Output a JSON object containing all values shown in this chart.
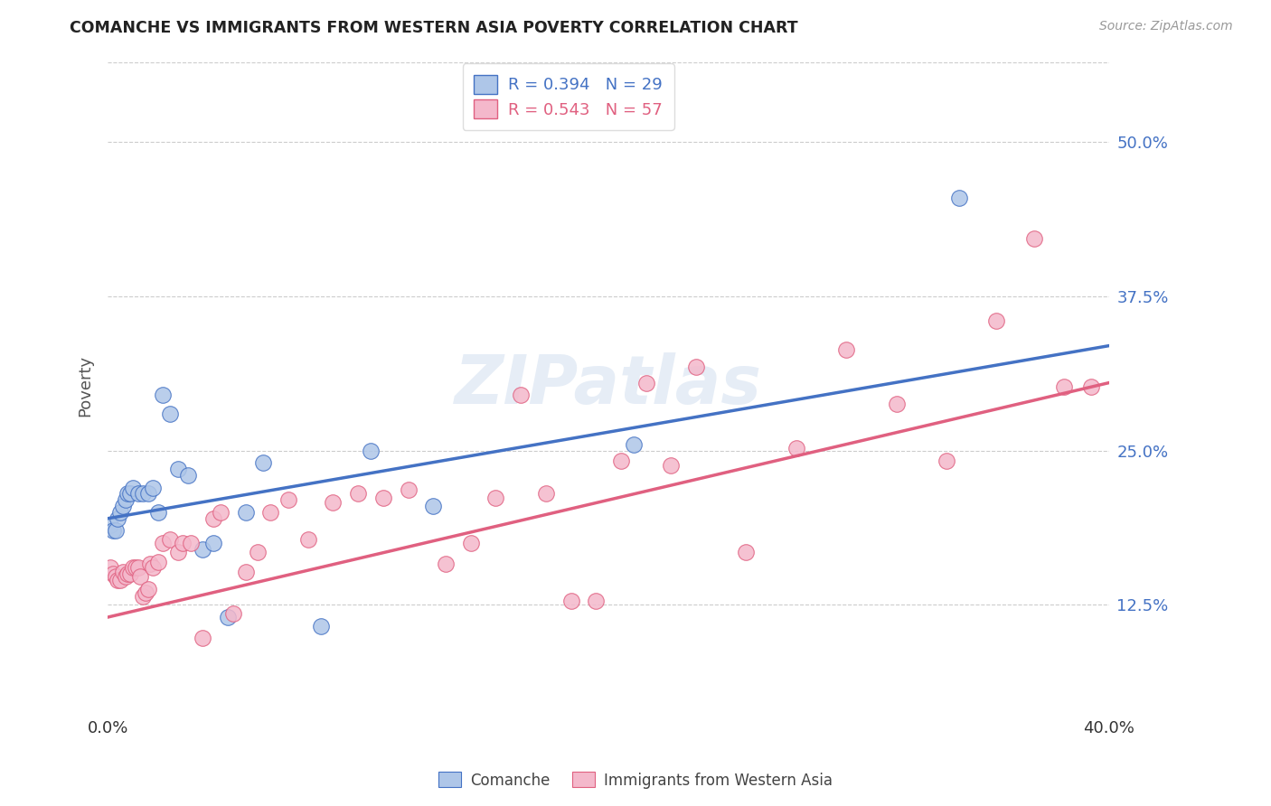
{
  "title": "COMANCHE VS IMMIGRANTS FROM WESTERN ASIA POVERTY CORRELATION CHART",
  "source": "Source: ZipAtlas.com",
  "ylabel": "Poverty",
  "ytick_values": [
    0.125,
    0.25,
    0.375,
    0.5
  ],
  "xlim": [
    0.0,
    0.4
  ],
  "ylim": [
    0.04,
    0.565
  ],
  "watermark": "ZIPatlas",
  "comanche_color": "#aec6e8",
  "immigrants_color": "#f4b8cb",
  "line_blue": "#4472c4",
  "line_pink": "#e06080",
  "blue_line_x0": 0.0,
  "blue_line_y0": 0.195,
  "blue_line_x1": 0.4,
  "blue_line_y1": 0.335,
  "pink_line_x0": 0.0,
  "pink_line_y0": 0.115,
  "pink_line_x1": 0.4,
  "pink_line_y1": 0.305,
  "comanche_x": [
    0.001,
    0.002,
    0.003,
    0.004,
    0.005,
    0.006,
    0.007,
    0.008,
    0.009,
    0.01,
    0.012,
    0.014,
    0.016,
    0.018,
    0.02,
    0.022,
    0.025,
    0.028,
    0.032,
    0.038,
    0.042,
    0.048,
    0.055,
    0.062,
    0.085,
    0.105,
    0.13,
    0.21,
    0.34
  ],
  "comanche_y": [
    0.19,
    0.185,
    0.185,
    0.195,
    0.2,
    0.205,
    0.21,
    0.215,
    0.215,
    0.22,
    0.215,
    0.215,
    0.215,
    0.22,
    0.2,
    0.295,
    0.28,
    0.235,
    0.23,
    0.17,
    0.175,
    0.115,
    0.2,
    0.24,
    0.108,
    0.25,
    0.205,
    0.255,
    0.455
  ],
  "immigrants_x": [
    0.001,
    0.002,
    0.003,
    0.004,
    0.005,
    0.006,
    0.007,
    0.008,
    0.009,
    0.01,
    0.011,
    0.012,
    0.013,
    0.014,
    0.015,
    0.016,
    0.017,
    0.018,
    0.02,
    0.022,
    0.025,
    0.028,
    0.03,
    0.033,
    0.038,
    0.042,
    0.045,
    0.05,
    0.055,
    0.06,
    0.065,
    0.072,
    0.08,
    0.09,
    0.1,
    0.11,
    0.12,
    0.135,
    0.145,
    0.155,
    0.165,
    0.175,
    0.185,
    0.195,
    0.205,
    0.215,
    0.225,
    0.235,
    0.255,
    0.275,
    0.295,
    0.315,
    0.335,
    0.355,
    0.37,
    0.382,
    0.393
  ],
  "immigrants_y": [
    0.155,
    0.15,
    0.148,
    0.145,
    0.145,
    0.152,
    0.148,
    0.15,
    0.15,
    0.155,
    0.155,
    0.155,
    0.148,
    0.132,
    0.135,
    0.138,
    0.158,
    0.155,
    0.16,
    0.175,
    0.178,
    0.168,
    0.175,
    0.175,
    0.098,
    0.195,
    0.2,
    0.118,
    0.152,
    0.168,
    0.2,
    0.21,
    0.178,
    0.208,
    0.215,
    0.212,
    0.218,
    0.158,
    0.175,
    0.212,
    0.295,
    0.215,
    0.128,
    0.128,
    0.242,
    0.305,
    0.238,
    0.318,
    0.168,
    0.252,
    0.332,
    0.288,
    0.242,
    0.355,
    0.422,
    0.302,
    0.302
  ]
}
